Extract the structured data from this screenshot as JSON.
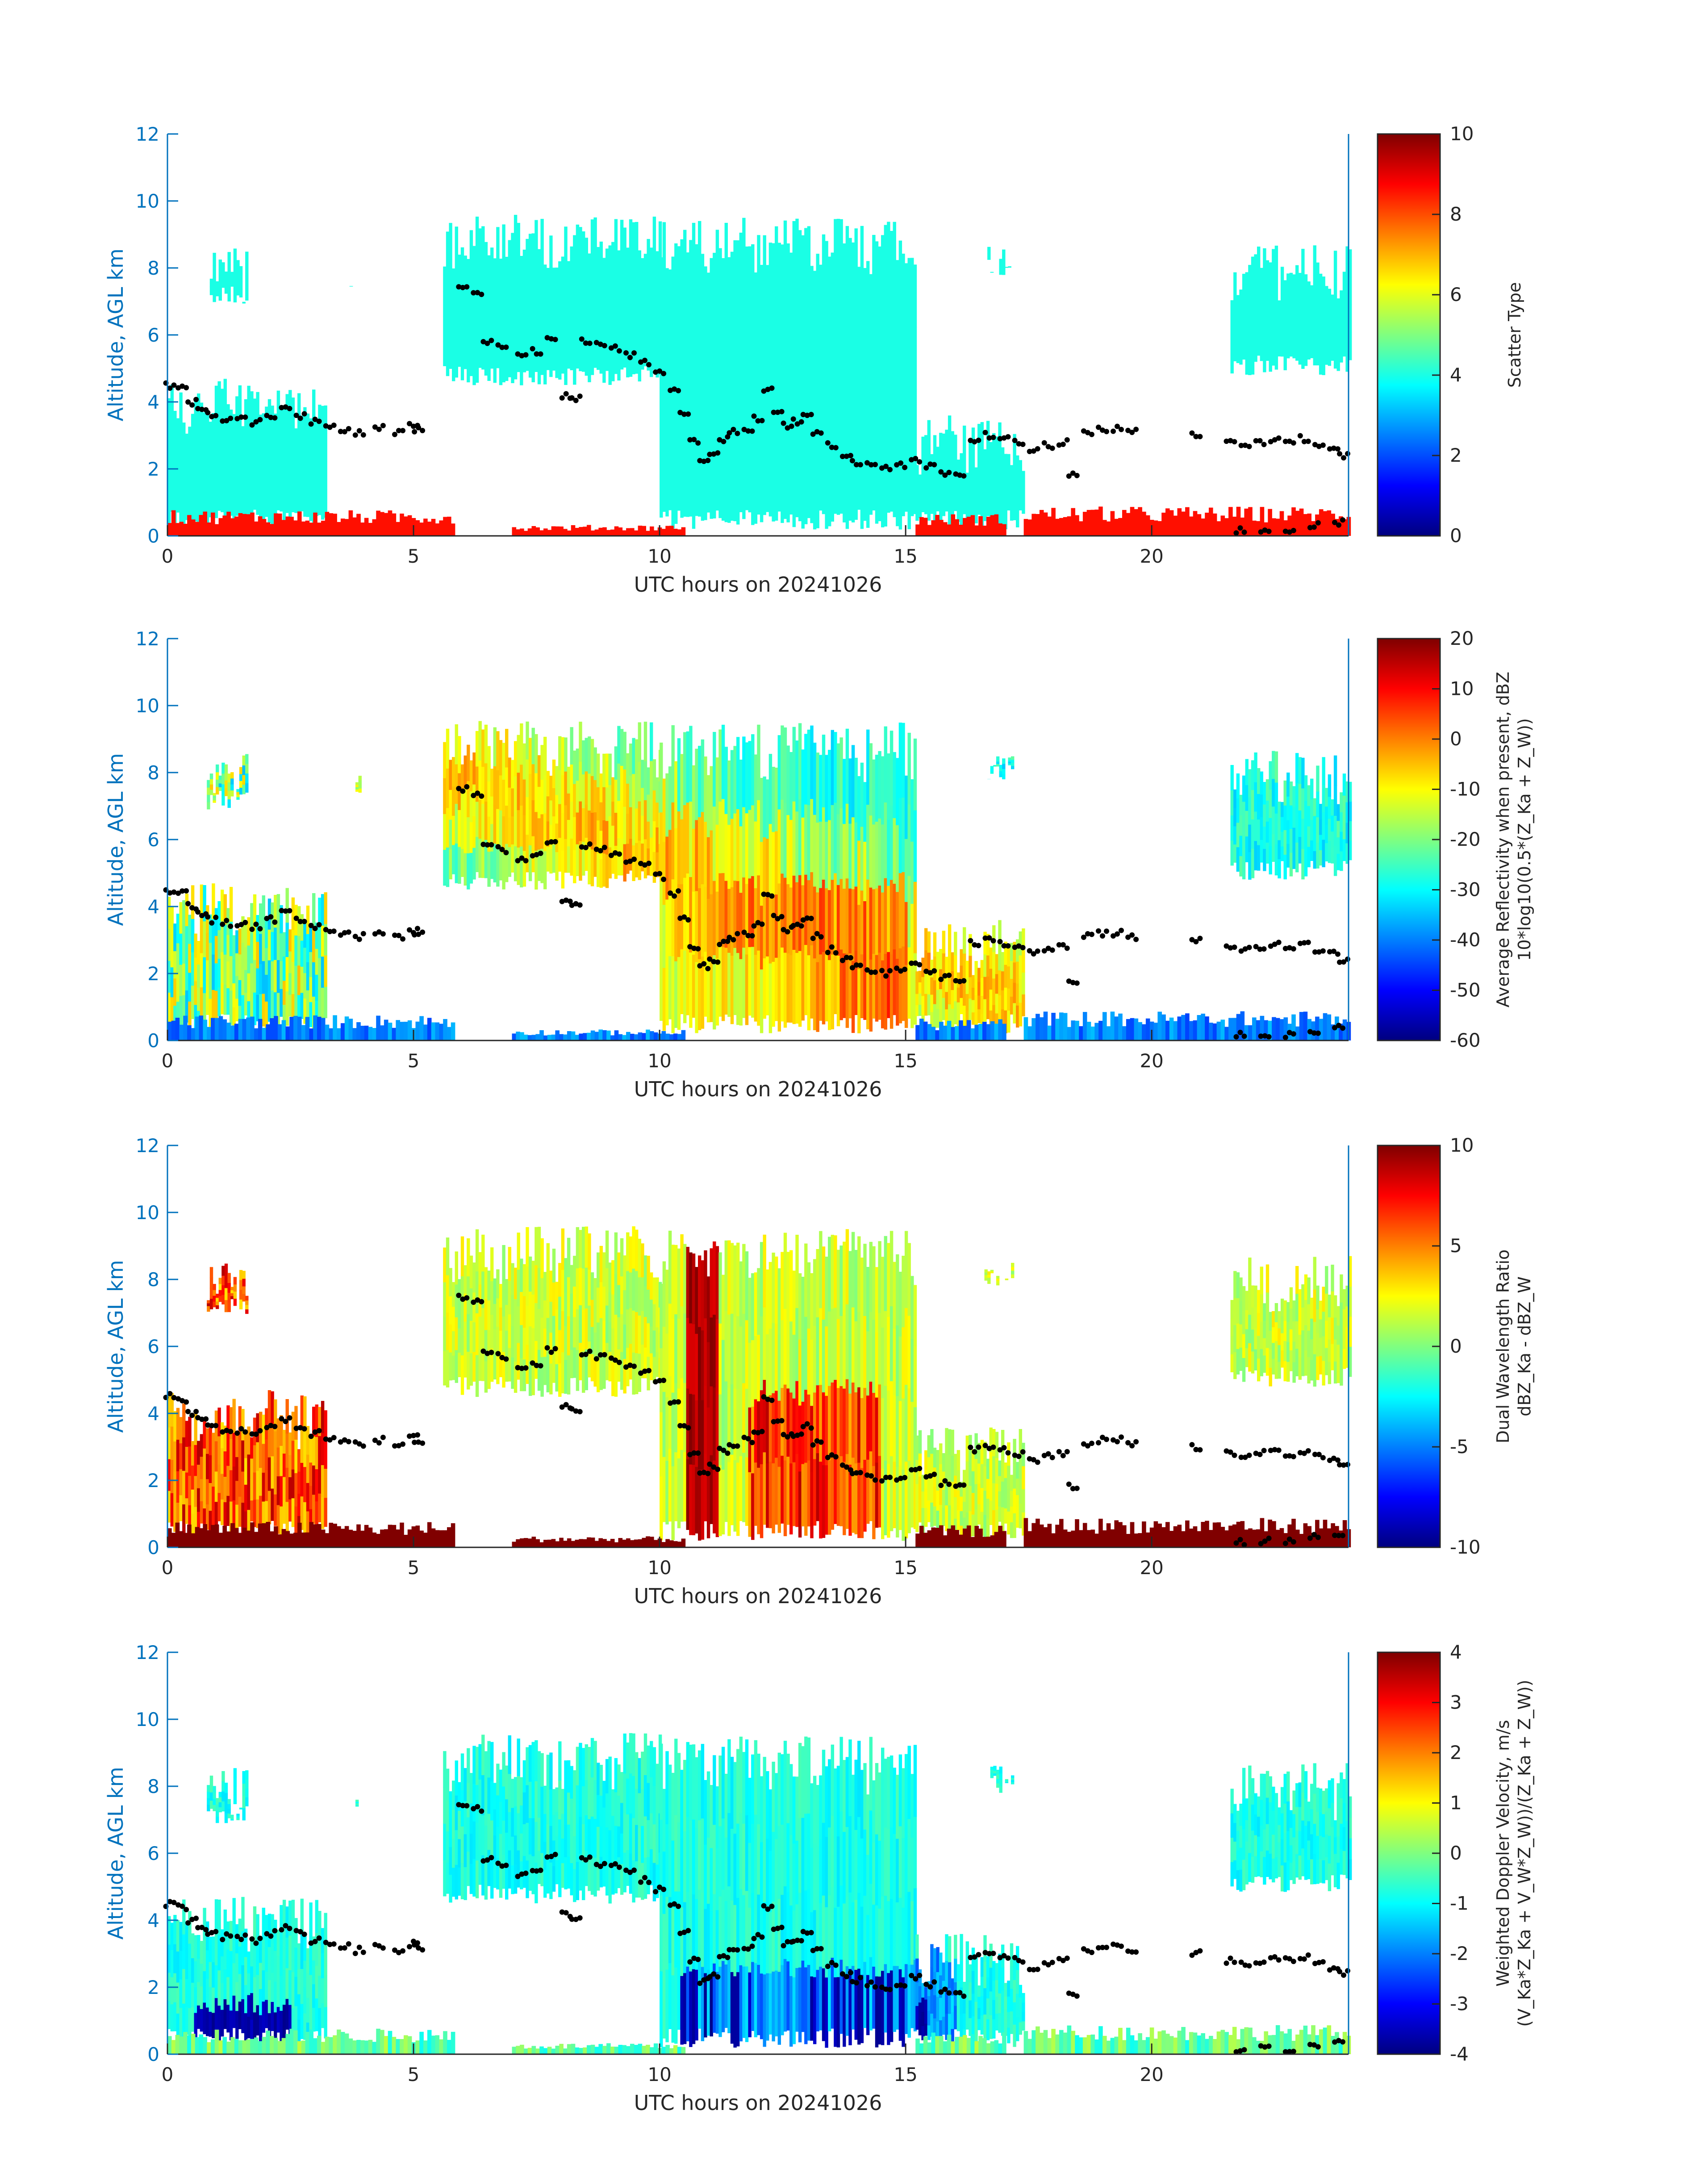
{
  "colors": {
    "y_axis": "#0072BD",
    "x_axis": "#262626",
    "text": "#262626",
    "markers": "#000000",
    "background": "#ffffff"
  },
  "chart_data": [
    {
      "type": "heatmap",
      "panel": "scatter-type",
      "xlabel": "UTC hours on 20241026",
      "ylabel": "Altitude, AGL km",
      "xlim": [
        0,
        24
      ],
      "ylim": [
        0,
        12
      ],
      "xticks": [
        0,
        5,
        10,
        15,
        20
      ],
      "yticks": [
        0,
        2,
        4,
        6,
        8,
        10,
        12
      ],
      "colorbar": {
        "label_lines": [
          "Scatter Type"
        ],
        "range": [
          0,
          10
        ],
        "ticks": [
          0,
          2,
          4,
          6,
          8,
          10
        ]
      },
      "dominant_values": {
        "cloud": 4,
        "surface_clutter": 8.6
      }
    },
    {
      "type": "heatmap",
      "panel": "reflectivity",
      "xlabel": "UTC hours on 20241026",
      "ylabel": "Altitude, AGL km",
      "xlim": [
        0,
        24
      ],
      "ylim": [
        0,
        12
      ],
      "xticks": [
        0,
        5,
        10,
        15,
        20
      ],
      "yticks": [
        0,
        2,
        4,
        6,
        8,
        10,
        12
      ],
      "colorbar": {
        "label_lines": [
          "Average Reflectivity when present, dBZ",
          "10*log10(0.5*(Z_Ka + Z_W))"
        ],
        "range": [
          -60,
          20
        ],
        "ticks": [
          -60,
          -50,
          -40,
          -30,
          -20,
          -10,
          0,
          10,
          20
        ]
      }
    },
    {
      "type": "heatmap",
      "panel": "dual-wavelength-ratio",
      "xlabel": "UTC hours on 20241026",
      "ylabel": "Altitude, AGL km",
      "xlim": [
        0,
        24
      ],
      "ylim": [
        0,
        12
      ],
      "xticks": [
        0,
        5,
        10,
        15,
        20
      ],
      "yticks": [
        0,
        2,
        4,
        6,
        8,
        10,
        12
      ],
      "colorbar": {
        "label_lines": [
          "Dual Wavelength Ratio",
          "dBZ_Ka - dBZ_W"
        ],
        "range": [
          -10,
          10
        ],
        "ticks": [
          -10,
          -5,
          0,
          5,
          10
        ]
      }
    },
    {
      "type": "heatmap",
      "panel": "doppler-velocity",
      "xlabel": "UTC hours on 20241026",
      "ylabel": "Altitude, AGL km",
      "xlim": [
        0,
        24
      ],
      "ylim": [
        0,
        12
      ],
      "xticks": [
        0,
        5,
        10,
        15,
        20
      ],
      "yticks": [
        0,
        2,
        4,
        6,
        8,
        10,
        12
      ],
      "colorbar": {
        "label_lines": [
          "Weighted Doppler Velocity, m/s",
          "(V_Ka*Z_Ka + V_W*Z_W))/(Z_Ka + Z_W))"
        ],
        "range": [
          -4,
          4
        ],
        "ticks": [
          -4,
          -3,
          -2,
          -1,
          0,
          1,
          2,
          3,
          4
        ]
      }
    }
  ],
  "cloud_mask": {
    "clusters": [
      {
        "x0": 0.0,
        "x1": 3.2,
        "bottom": 0.2,
        "top": 4.7
      },
      {
        "x0": 0.8,
        "x1": 1.6,
        "bottom": 6.9,
        "top": 8.6
      },
      {
        "x0": 3.7,
        "x1": 4.0,
        "bottom": 7.4,
        "top": 8.0
      },
      {
        "x0": 5.6,
        "x1": 10.0,
        "bottom": 4.5,
        "top": 9.6
      },
      {
        "x0": 10.0,
        "x1": 15.2,
        "bottom": 0.2,
        "top": 9.5
      },
      {
        "x0": 15.2,
        "x1": 17.4,
        "bottom": 0.2,
        "top": 3.6
      },
      {
        "x0": 16.6,
        "x1": 17.2,
        "bottom": 7.8,
        "top": 8.7
      },
      {
        "x0": 21.6,
        "x1": 24.0,
        "bottom": 4.8,
        "top": 8.7
      }
    ],
    "surface_layer": [
      {
        "x0": 0.0,
        "x1": 5.8,
        "top": 0.7
      },
      {
        "x0": 7.0,
        "x1": 10.5,
        "top": 0.3
      },
      {
        "x0": 15.2,
        "x1": 17.0,
        "top": 0.6
      },
      {
        "x0": 17.4,
        "x1": 24.0,
        "top": 0.8
      }
    ]
  },
  "marker_track": [
    [
      0.05,
      4.5
    ],
    [
      0.3,
      4.4
    ],
    [
      0.5,
      4.0
    ],
    [
      0.7,
      3.8
    ],
    [
      0.9,
      3.6
    ],
    [
      1.2,
      3.5
    ],
    [
      1.5,
      3.5
    ],
    [
      1.8,
      3.4
    ],
    [
      2.1,
      3.6
    ],
    [
      2.4,
      3.8
    ],
    [
      2.7,
      3.6
    ],
    [
      3.0,
      3.4
    ],
    [
      3.3,
      3.3
    ],
    [
      3.6,
      3.2
    ],
    [
      3.9,
      3.1
    ],
    [
      4.3,
      3.2
    ],
    [
      4.7,
      3.1
    ],
    [
      5.0,
      3.3
    ],
    [
      5.1,
      3.2
    ],
    [
      6.0,
      7.5
    ],
    [
      6.3,
      7.3
    ],
    [
      6.5,
      5.8
    ],
    [
      6.8,
      5.7
    ],
    [
      7.2,
      5.4
    ],
    [
      7.5,
      5.5
    ],
    [
      7.8,
      5.9
    ],
    [
      8.1,
      4.2
    ],
    [
      8.3,
      4.1
    ],
    [
      8.5,
      5.8
    ],
    [
      8.8,
      5.7
    ],
    [
      9.1,
      5.6
    ],
    [
      9.4,
      5.4
    ],
    [
      9.7,
      5.2
    ],
    [
      10.0,
      4.9
    ],
    [
      10.3,
      4.4
    ],
    [
      10.5,
      3.6
    ],
    [
      10.7,
      2.8
    ],
    [
      10.9,
      2.2
    ],
    [
      11.1,
      2.4
    ],
    [
      11.3,
      2.9
    ],
    [
      11.5,
      3.1
    ],
    [
      11.8,
      3.2
    ],
    [
      12.0,
      3.5
    ],
    [
      12.2,
      4.4
    ],
    [
      12.4,
      3.7
    ],
    [
      12.6,
      3.3
    ],
    [
      12.8,
      3.4
    ],
    [
      13.0,
      3.6
    ],
    [
      13.2,
      3.1
    ],
    [
      13.5,
      2.7
    ],
    [
      13.8,
      2.4
    ],
    [
      14.0,
      2.2
    ],
    [
      14.3,
      2.1
    ],
    [
      14.6,
      2.0
    ],
    [
      14.9,
      2.1
    ],
    [
      15.2,
      2.3
    ],
    [
      15.5,
      2.1
    ],
    [
      15.8,
      1.9
    ],
    [
      16.1,
      1.8
    ],
    [
      16.4,
      2.9
    ],
    [
      16.7,
      3.0
    ],
    [
      17.0,
      2.9
    ],
    [
      17.3,
      2.8
    ],
    [
      17.6,
      2.6
    ],
    [
      17.9,
      2.7
    ],
    [
      18.2,
      2.8
    ],
    [
      18.4,
      1.8
    ],
    [
      18.7,
      3.1
    ],
    [
      19.0,
      3.2
    ],
    [
      19.3,
      3.2
    ],
    [
      19.6,
      3.1
    ],
    [
      20.9,
      3.0
    ],
    [
      21.6,
      2.8
    ],
    [
      21.9,
      2.7
    ],
    [
      22.2,
      2.8
    ],
    [
      22.5,
      2.9
    ],
    [
      22.8,
      2.8
    ],
    [
      23.1,
      2.9
    ],
    [
      23.4,
      2.7
    ],
    [
      23.7,
      2.6
    ],
    [
      23.9,
      2.4
    ],
    [
      21.8,
      0.15
    ],
    [
      22.3,
      0.2
    ],
    [
      22.8,
      0.15
    ],
    [
      23.3,
      0.3
    ],
    [
      23.8,
      0.4
    ]
  ]
}
